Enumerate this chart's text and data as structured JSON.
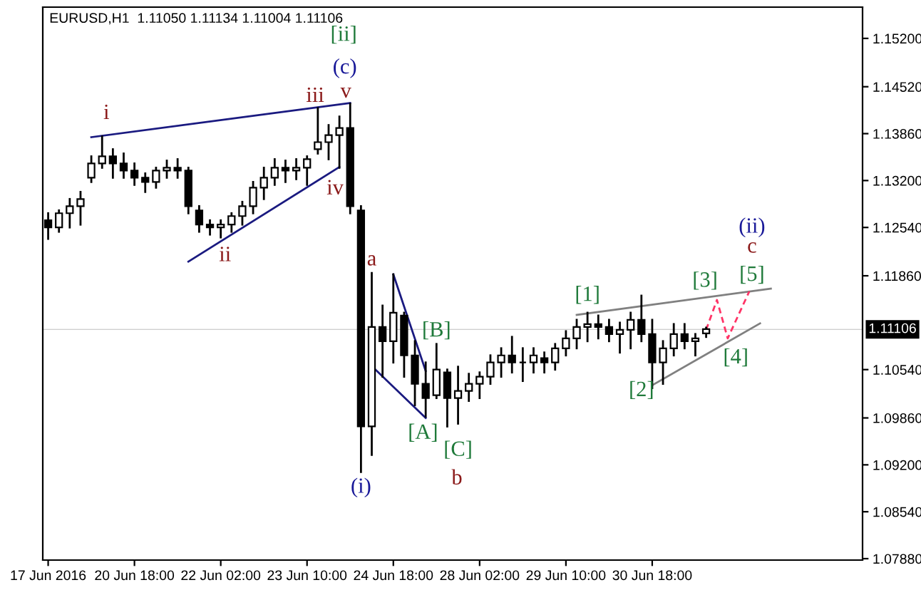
{
  "chart_data": {
    "type": "candlestick",
    "title": "EURUSD,H1  1.11050 1.11134 1.11004 1.11106",
    "categories": [
      "17 Jun 2016",
      null,
      null,
      null,
      null,
      null,
      null,
      null,
      "20 Jun 18:00",
      null,
      null,
      null,
      null,
      null,
      null,
      null,
      "22 Jun 02:00",
      null,
      null,
      null,
      null,
      null,
      null,
      null,
      "23 Jun 10:00",
      null,
      null,
      null,
      null,
      null,
      null,
      null,
      "24 Jun 18:00",
      null,
      null,
      null,
      null,
      null,
      null,
      null,
      "28 Jun 02:00",
      null,
      null,
      null,
      null,
      null,
      null,
      null,
      "29 Jun 10:00",
      null,
      null,
      null,
      null,
      null,
      null,
      null,
      "30 Jun 18:00",
      null,
      null,
      null,
      null,
      null,
      null,
      null,
      null,
      null,
      null,
      null,
      null,
      null,
      null,
      null,
      null,
      null,
      null,
      null
    ],
    "color": "#000000",
    "ohlc": [
      [
        1.1264,
        1.1274,
        1.1238,
        1.1254
      ],
      [
        1.1254,
        1.1278,
        1.1248,
        1.1274
      ],
      [
        1.1274,
        1.1294,
        1.1254,
        1.1284
      ],
      [
        1.1284,
        1.1304,
        1.1258,
        1.1294
      ],
      [
        1.1324,
        1.1354,
        1.1318,
        1.1344
      ],
      [
        1.1344,
        1.1382,
        1.1338,
        1.1354
      ],
      [
        1.1354,
        1.1364,
        1.1324,
        1.1344
      ],
      [
        1.1344,
        1.1358,
        1.1324,
        1.1334
      ],
      [
        1.1334,
        1.1344,
        1.1314,
        1.1324
      ],
      [
        1.1324,
        1.133,
        1.1304,
        1.1318
      ],
      [
        1.1318,
        1.1338,
        1.131,
        1.1334
      ],
      [
        1.1334,
        1.1348,
        1.1324,
        1.1338
      ],
      [
        1.1338,
        1.135,
        1.1324,
        1.1334
      ],
      [
        1.1334,
        1.1338,
        1.1274,
        1.1284
      ],
      [
        1.1278,
        1.1284,
        1.1248,
        1.1258
      ],
      [
        1.1258,
        1.1264,
        1.1244,
        1.1254
      ],
      [
        1.1254,
        1.1264,
        1.124,
        1.1258
      ],
      [
        1.1258,
        1.1274,
        1.1248,
        1.127
      ],
      [
        1.127,
        1.129,
        1.1258,
        1.1284
      ],
      [
        1.1284,
        1.1318,
        1.1274,
        1.131
      ],
      [
        1.131,
        1.1338,
        1.1294,
        1.1324
      ],
      [
        1.1324,
        1.135,
        1.1314,
        1.1338
      ],
      [
        1.1338,
        1.1348,
        1.1318,
        1.1334
      ],
      [
        1.1334,
        1.135,
        1.1322,
        1.1338
      ],
      [
        1.1338,
        1.1354,
        1.1314,
        1.135
      ],
      [
        1.1364,
        1.1422,
        1.1358,
        1.1374
      ],
      [
        1.1374,
        1.1398,
        1.135,
        1.1384
      ],
      [
        1.1384,
        1.141,
        1.1338,
        1.1394
      ],
      [
        1.1394,
        1.1428,
        1.1274,
        1.1284
      ],
      [
        1.1278,
        1.1284,
        1.091,
        1.0974
      ],
      [
        1.0974,
        1.119,
        1.0934,
        1.1114
      ],
      [
        1.1114,
        1.1144,
        1.1044,
        1.1094
      ],
      [
        1.1094,
        1.1188,
        1.1064,
        1.1134
      ],
      [
        1.113,
        1.1134,
        1.1044,
        1.1074
      ],
      [
        1.1074,
        1.1094,
        1.1004,
        1.1034
      ],
      [
        1.1034,
        1.1064,
        1.0988,
        1.1014
      ],
      [
        1.1018,
        1.109,
        1.1014,
        1.1054
      ],
      [
        1.105,
        1.1054,
        1.0974,
        1.1014
      ],
      [
        1.1014,
        1.1058,
        1.0978,
        1.1024
      ],
      [
        1.1024,
        1.1048,
        1.101,
        1.1034
      ],
      [
        1.1034,
        1.105,
        1.1014,
        1.1044
      ],
      [
        1.1044,
        1.1074,
        1.1034,
        1.1064
      ],
      [
        1.1064,
        1.1084,
        1.1044,
        1.1074
      ],
      [
        1.1074,
        1.11,
        1.105,
        1.1064
      ],
      [
        1.1064,
        1.1084,
        1.1038,
        1.1064
      ],
      [
        1.1064,
        1.1084,
        1.105,
        1.1074
      ],
      [
        1.107,
        1.1078,
        1.105,
        1.1064
      ],
      [
        1.1064,
        1.109,
        1.1054,
        1.1084
      ],
      [
        1.1084,
        1.1108,
        1.1074,
        1.1098
      ],
      [
        1.1098,
        1.1124,
        1.1084,
        1.1114
      ],
      [
        1.1114,
        1.1134,
        1.1094,
        1.1118
      ],
      [
        1.1118,
        1.113,
        1.1098,
        1.1114
      ],
      [
        1.1114,
        1.1124,
        1.1094,
        1.1104
      ],
      [
        1.1104,
        1.112,
        1.1078,
        1.111
      ],
      [
        1.111,
        1.1134,
        1.1084,
        1.1124
      ],
      [
        1.1124,
        1.1158,
        1.1094,
        1.1104
      ],
      [
        1.1104,
        1.1124,
        1.1028,
        1.1064
      ],
      [
        1.1064,
        1.1094,
        1.1034,
        1.1084
      ],
      [
        1.1084,
        1.1118,
        1.1074,
        1.1104
      ],
      [
        1.1104,
        1.1118,
        1.1084,
        1.1094
      ],
      [
        1.1094,
        1.1104,
        1.1074,
        1.1098
      ],
      [
        1.1105,
        1.1113,
        1.11,
        1.1111
      ],
      null,
      null,
      null,
      null,
      null,
      null,
      null,
      null,
      null,
      null,
      null,
      null,
      null,
      null
    ],
    "series": [
      {
        "type": "line",
        "color": "#1a1a80",
        "values": [
          null,
          null,
          null,
          null,
          1.1381,
          null,
          null,
          null,
          null,
          null,
          null,
          null,
          null,
          null,
          null,
          null,
          null,
          null,
          null,
          null,
          null,
          null,
          null,
          null,
          null,
          null,
          null,
          null,
          1.1429,
          null,
          null,
          null,
          null,
          null,
          null,
          null,
          null,
          null,
          null,
          null,
          null,
          null,
          null,
          null,
          null,
          null,
          null,
          null,
          null,
          null,
          null,
          null,
          null,
          null,
          null,
          null,
          null,
          null,
          null,
          null,
          null,
          null,
          null,
          null,
          null,
          null,
          null,
          null,
          null,
          null,
          null,
          null,
          null,
          null,
          null,
          null
        ]
      },
      {
        "type": "line",
        "color": "#1a1a80",
        "values": [
          null,
          null,
          null,
          null,
          null,
          null,
          null,
          null,
          null,
          null,
          null,
          null,
          null,
          1.1206,
          null,
          null,
          null,
          null,
          null,
          null,
          null,
          null,
          null,
          null,
          null,
          null,
          null,
          1.1339,
          null,
          null,
          null,
          null,
          null,
          null,
          null,
          null,
          null,
          null,
          null,
          null,
          null,
          null,
          null,
          null,
          null,
          null,
          null,
          null,
          null,
          null,
          null,
          null,
          null,
          null,
          null,
          null,
          null,
          null,
          null,
          null,
          null,
          null,
          null,
          null,
          null,
          null,
          null,
          null,
          null,
          null,
          null,
          null,
          null,
          null,
          null,
          null
        ]
      },
      {
        "type": "line",
        "color": "#1a1a80",
        "values": [
          null,
          null,
          null,
          null,
          null,
          null,
          null,
          null,
          null,
          null,
          null,
          null,
          null,
          null,
          null,
          null,
          null,
          null,
          null,
          null,
          null,
          null,
          null,
          null,
          null,
          null,
          null,
          null,
          null,
          null,
          null,
          null,
          1.1188,
          null,
          null,
          1.1052,
          null,
          null,
          null,
          null,
          null,
          null,
          null,
          null,
          null,
          null,
          null,
          null,
          null,
          null,
          null,
          null,
          null,
          null,
          null,
          null,
          null,
          null,
          null,
          null,
          null,
          null,
          null,
          null,
          null,
          null,
          null,
          null,
          null,
          null,
          null,
          null,
          null,
          null,
          null,
          null
        ]
      },
      {
        "type": "line",
        "color": "#1a1a80",
        "values": [
          null,
          null,
          null,
          null,
          null,
          null,
          null,
          null,
          null,
          null,
          null,
          null,
          null,
          null,
          null,
          null,
          null,
          null,
          null,
          null,
          null,
          null,
          null,
          null,
          null,
          null,
          null,
          null,
          null,
          null,
          1.1059,
          null,
          null,
          null,
          null,
          1.0986,
          null,
          null,
          null,
          null,
          null,
          null,
          null,
          null,
          null,
          null,
          null,
          null,
          null,
          null,
          null,
          null,
          null,
          null,
          null,
          null,
          null,
          null,
          null,
          null,
          null,
          null,
          null,
          null,
          null,
          null,
          null,
          null,
          null,
          null,
          null,
          null,
          null,
          null,
          null,
          null
        ]
      },
      {
        "type": "line",
        "color": "#808080",
        "values": [
          null,
          null,
          null,
          null,
          null,
          null,
          null,
          null,
          null,
          null,
          null,
          null,
          null,
          null,
          null,
          null,
          null,
          null,
          null,
          null,
          null,
          null,
          null,
          null,
          null,
          null,
          null,
          null,
          null,
          null,
          null,
          null,
          null,
          null,
          null,
          null,
          null,
          null,
          null,
          null,
          null,
          null,
          null,
          null,
          null,
          null,
          null,
          null,
          null,
          1.1131,
          null,
          null,
          null,
          null,
          null,
          null,
          null,
          null,
          null,
          null,
          null,
          null,
          null,
          null,
          null,
          null,
          null,
          1.1168,
          null,
          null,
          null,
          null,
          null,
          null,
          null,
          null
        ]
      },
      {
        "type": "line",
        "color": "#808080",
        "values": [
          null,
          null,
          null,
          null,
          null,
          null,
          null,
          null,
          null,
          null,
          null,
          null,
          null,
          null,
          null,
          null,
          null,
          null,
          null,
          null,
          null,
          null,
          null,
          null,
          null,
          null,
          null,
          null,
          null,
          null,
          null,
          null,
          null,
          null,
          null,
          null,
          null,
          null,
          null,
          null,
          null,
          null,
          null,
          null,
          null,
          null,
          null,
          null,
          null,
          null,
          null,
          null,
          null,
          null,
          null,
          null,
          1.1032,
          null,
          null,
          null,
          null,
          null,
          null,
          null,
          null,
          null,
          1.1119,
          null,
          null,
          null,
          null,
          null,
          null,
          null,
          null,
          null
        ]
      },
      {
        "type": "line",
        "color": "#ff3366",
        "line_style": "dashed",
        "values": [
          null,
          null,
          null,
          null,
          null,
          null,
          null,
          null,
          null,
          null,
          null,
          null,
          null,
          null,
          null,
          null,
          null,
          null,
          null,
          null,
          null,
          null,
          null,
          null,
          null,
          null,
          null,
          null,
          null,
          null,
          null,
          null,
          null,
          null,
          null,
          null,
          null,
          null,
          null,
          null,
          null,
          null,
          null,
          null,
          null,
          null,
          null,
          null,
          null,
          null,
          null,
          null,
          null,
          null,
          null,
          null,
          null,
          null,
          null,
          null,
          null,
          1.111,
          1.1152,
          1.1098,
          null,
          1.1164,
          null,
          null,
          null,
          null,
          null,
          null,
          null,
          null,
          null,
          null
        ]
      }
    ],
    "ylim": [
      1.0786,
      1.1564
    ],
    "yticks": [
      {
        "value": 1.152,
        "label": "1.15200"
      },
      {
        "value": 1.1452,
        "label": "1.14520"
      },
      {
        "value": 1.1386,
        "label": "1.13860"
      },
      {
        "value": 1.132,
        "label": "1.13200"
      },
      {
        "value": 1.1254,
        "label": "1.12540"
      },
      {
        "value": 1.1186,
        "label": "1.11860"
      },
      {
        "value": 1.1054,
        "label": "1.10540"
      },
      {
        "value": 1.0986,
        "label": "1.09860"
      },
      {
        "value": 1.092,
        "label": "1.09200"
      },
      {
        "value": 1.0854,
        "label": "1.08540"
      },
      {
        "value": 1.0788,
        "label": "1.07880"
      }
    ],
    "ref_lines": [
      {
        "axis": "y",
        "value": 1.11106,
        "label": "1.11106",
        "color": "#000000"
      }
    ],
    "annotations": [
      "[ii]",
      "(c)",
      "v",
      "iii",
      "i",
      "iv",
      "ii",
      "a",
      "(i)",
      "[B]",
      "[A]",
      "[C]",
      "b",
      "[1]",
      "[3]",
      {
        "text": "[5]",
        "y": 1.1164
      },
      "c",
      "(ii)",
      "[4]",
      "[2]"
    ]
  }
}
